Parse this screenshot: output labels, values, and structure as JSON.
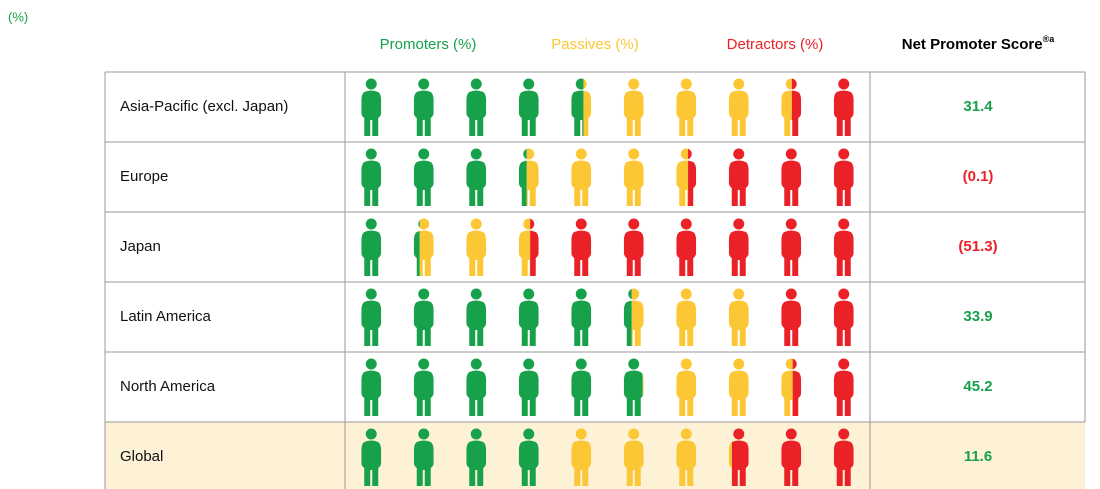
{
  "chart_data": {
    "type": "pictogram",
    "unit_label": "(%)",
    "categories": [
      "Asia-Pacific (excl. Japan)",
      "Europe",
      "Japan",
      "Latin America",
      "North America",
      "Global"
    ],
    "series": [
      {
        "name": "Promoters (%)",
        "color": "#17a14a",
        "values": [
          46.1,
          34.0,
          13.0,
          54.0,
          59.5,
          40.0
        ]
      },
      {
        "name": "Passives (%)",
        "color": "#fcc734",
        "values": [
          39.2,
          31.9,
          22.7,
          25.9,
          26.2,
          31.6
        ]
      },
      {
        "name": "Detractors (%)",
        "color": "#ea2127",
        "values": [
          14.7,
          34.1,
          64.3,
          20.1,
          14.3,
          28.4
        ]
      }
    ],
    "score": {
      "name": "Net Promoter Score",
      "superscript": "®a",
      "values": [
        31.4,
        -0.1,
        -51.3,
        33.9,
        45.2,
        11.6
      ],
      "value_labels": [
        "31.4",
        "(0.1)",
        "(51.3)",
        "33.9",
        "45.2",
        "11.6"
      ],
      "positive_color": "#17a14a",
      "negative_color": "#ea2127"
    },
    "highlight_row": 5,
    "highlight_color": "#fdf1d6",
    "icons_per_row": 10
  }
}
